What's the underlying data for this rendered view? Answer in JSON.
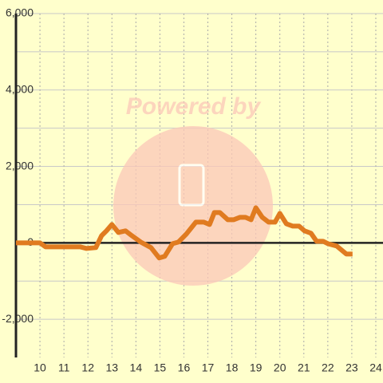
{
  "chart_data": {
    "type": "line",
    "watermark": "Powered by",
    "x": [
      9.0,
      10.0,
      10.23,
      11.03,
      11.67,
      11.93,
      12.33,
      12.57,
      12.77,
      13.0,
      13.27,
      13.57,
      13.83,
      14.2,
      14.63,
      14.97,
      15.2,
      15.53,
      15.77,
      16.1,
      16.5,
      16.83,
      17.07,
      17.27,
      17.5,
      17.83,
      18.07,
      18.33,
      18.57,
      18.8,
      19.0,
      19.27,
      19.53,
      19.8,
      20.0,
      20.27,
      20.53,
      20.8,
      21.03,
      21.3,
      21.53,
      21.8,
      22.0,
      22.37,
      22.77,
      23.03
    ],
    "series": [
      {
        "color": "#e07b20",
        "values": [
          0,
          0,
          -104,
          -104,
          -104,
          -146,
          -125,
          188,
          313,
          479,
          271,
          313,
          188,
          21,
          -125,
          -396,
          -354,
          -21,
          21,
          229,
          542,
          542,
          479,
          792,
          792,
          604,
          604,
          667,
          667,
          604,
          917,
          667,
          542,
          542,
          771,
          500,
          438,
          438,
          313,
          250,
          42,
          42,
          -21,
          -83,
          -292,
          -292
        ]
      }
    ],
    "xlim": [
      9,
      24.3
    ],
    "xticks": [
      10,
      11,
      12,
      13,
      14,
      15,
      16,
      17,
      18,
      19,
      20,
      21,
      22,
      23,
      24
    ],
    "ylim": [
      -3000,
      6000
    ],
    "yticks": [
      {
        "value": -2000,
        "label": "-2,000"
      },
      0,
      {
        "value": 2000,
        "label": "2,000"
      },
      {
        "value": 4000,
        "label": "4,000"
      },
      {
        "value": 6000,
        "label": "6,000"
      }
    ],
    "grid": true
  }
}
